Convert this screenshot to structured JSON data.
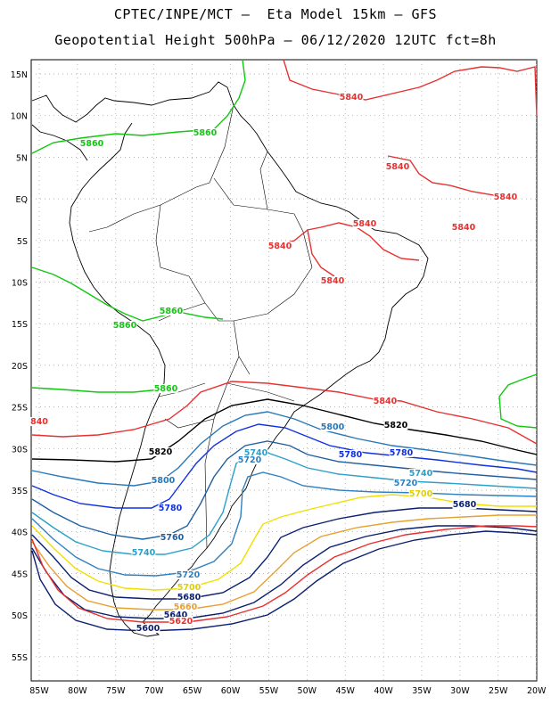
{
  "title_line1": "CPTEC/INPE/MCT –  Eta Model 15km – GFS",
  "title_line2": "Geopotential Height 500hPa – 06/12/2020 12UTC fct=8h",
  "lat_labels": [
    "15N",
    "10N",
    "5N",
    "EQ",
    "5S",
    "10S",
    "15S",
    "20S",
    "25S",
    "30S",
    "35S",
    "40S",
    "45S",
    "50S",
    "55S"
  ],
  "lon_labels": [
    "85W",
    "80W",
    "75W",
    "70W",
    "65W",
    "60W",
    "55W",
    "50W",
    "45W",
    "40W",
    "35W",
    "30W",
    "25W",
    "20W"
  ],
  "colors": {
    "c5560": "#0a1f6e",
    "c5600": "#0a1f6e",
    "c5620": "#e83030",
    "c5660": "#e8a030",
    "c5700": "#f0f000",
    "c5720": "#3080c0",
    "c5740": "#2aa0c8",
    "c5760": "#2060a0",
    "c5780": "#1030e0",
    "c5800": "#2878b8",
    "c5820": "#000000",
    "c5840": "#e83030",
    "c5860": "#10c810",
    "coast": "#000000",
    "grid": "#9a9a9a"
  },
  "contour_labels": [
    {
      "text": "5840",
      "color": "#e83030"
    },
    {
      "text": "5840",
      "color": "#e83030"
    },
    {
      "text": "5840",
      "color": "#e83030"
    },
    {
      "text": "5840",
      "color": "#e83030"
    },
    {
      "text": "5840",
      "color": "#e83030"
    },
    {
      "text": "5840",
      "color": "#e83030"
    },
    {
      "text": "5840",
      "color": "#e83030"
    },
    {
      "text": "5840",
      "color": "#e83030"
    },
    {
      "text": "840",
      "color": "#e83030"
    },
    {
      "text": "5860",
      "color": "#10c810"
    },
    {
      "text": "5860",
      "color": "#10c810"
    },
    {
      "text": "5860",
      "color": "#10c810"
    },
    {
      "text": "5860",
      "color": "#10c810"
    },
    {
      "text": "5860",
      "color": "#10c810"
    },
    {
      "text": "5820",
      "color": "#000000"
    },
    {
      "text": "5820",
      "color": "#000000"
    },
    {
      "text": "5800",
      "color": "#2878b8"
    },
    {
      "text": "5800",
      "color": "#2878b8"
    },
    {
      "text": "5780",
      "color": "#1030e0"
    },
    {
      "text": "5780",
      "color": "#1030e0"
    },
    {
      "text": "5780",
      "color": "#1030e0"
    },
    {
      "text": "5760",
      "color": "#2060a0"
    },
    {
      "text": "5740",
      "color": "#2aa0c8"
    },
    {
      "text": "5740",
      "color": "#2aa0c8"
    },
    {
      "text": "5740",
      "color": "#2aa0c8"
    },
    {
      "text": "5720",
      "color": "#3080c0"
    },
    {
      "text": "5720",
      "color": "#3080c0"
    },
    {
      "text": "5720",
      "color": "#3080c0"
    },
    {
      "text": "5700",
      "color": "#e0d000"
    },
    {
      "text": "5700",
      "color": "#e0d000"
    },
    {
      "text": "5680",
      "color": "#0a1f6e"
    },
    {
      "text": "5680",
      "color": "#0a1f6e"
    },
    {
      "text": "5660",
      "color": "#e8a030"
    },
    {
      "text": "5640",
      "color": "#0a1f6e"
    },
    {
      "text": "5620",
      "color": "#e83030"
    },
    {
      "text": "5600",
      "color": "#0a1f6e"
    }
  ]
}
